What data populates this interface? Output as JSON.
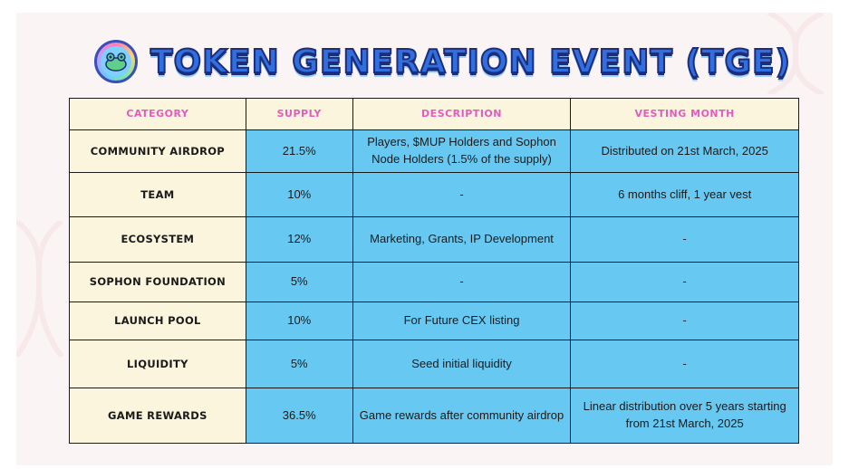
{
  "page": {
    "title": "TOKEN GENERATION EVENT (TGE)",
    "logo_icon": "frog-mascot-icon"
  },
  "colors": {
    "header_bg": "#fbf5de",
    "header_text": "#e35bbf",
    "cell_bg": "#67c9f2",
    "title_fill": "#2f6fe0",
    "title_stroke": "#1d2d7a"
  },
  "table": {
    "headers": [
      "CATEGORY",
      "SUPPLY",
      "DESCRIPTION",
      "VESTING MONTH"
    ],
    "rows": [
      {
        "category": "COMMUNITY AIRDROP",
        "supply": "21.5%",
        "description": "Players, $MUP Holders and Sophon Node Holders (1.5% of the supply)",
        "vesting": "Distributed on 21st March, 2025"
      },
      {
        "category": "TEAM",
        "supply": "10%",
        "description": "-",
        "vesting": "6 months cliff, 1 year vest"
      },
      {
        "category": "ECOSYSTEM",
        "supply": "12%",
        "description": "Marketing, Grants, IP Development",
        "vesting": "-"
      },
      {
        "category": "SOPHON FOUNDATION",
        "supply": "5%",
        "description": "-",
        "vesting": "-"
      },
      {
        "category": "LAUNCH POOL",
        "supply": "10%",
        "description": "For Future CEX listing",
        "vesting": "-"
      },
      {
        "category": "LIQUIDITY",
        "supply": "5%",
        "description": "Seed initial liquidity",
        "vesting": "-"
      },
      {
        "category": "GAME REWARDS",
        "supply": "36.5%",
        "description": "Game rewards after community airdrop",
        "vesting": "Linear distribution over 5 years starting from 21st March, 2025"
      }
    ]
  }
}
